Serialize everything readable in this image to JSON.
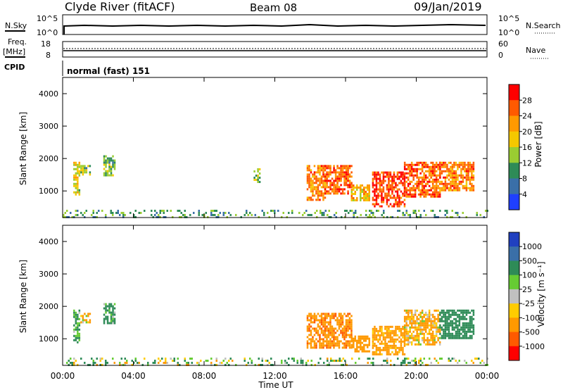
{
  "header": {
    "station": "Clyde River (fitACF)",
    "beam": "Beam 08",
    "date": "09/Jan/2019"
  },
  "top_panels": {
    "nsky_label": "N.Sky",
    "nsky_ticks": [
      "10^5",
      "10^0"
    ],
    "nsearch_label": "N.Search",
    "nsearch_ticks": [
      "10^5",
      "10^0"
    ],
    "freq_label_1": "Freq.",
    "freq_label_2": "[MHz]",
    "freq_ticks": [
      "18",
      "8"
    ],
    "nave_label": "Nave",
    "nave_ticks": [
      "60",
      "0"
    ],
    "cpid_label": "CPID",
    "cpid_value": "normal (fast) 151"
  },
  "chart_data": [
    {
      "type": "heatmap",
      "name": "power",
      "ylabel": "Slant Range [km]",
      "yticks": [
        "4000",
        "3000",
        "2000",
        "1000"
      ],
      "ylim": [
        180,
        4500
      ],
      "xlim": [
        0,
        24
      ],
      "colorbar": {
        "label": "Power [dB]",
        "ticks": [
          "28",
          "24",
          "20",
          "16",
          "12",
          "8",
          "4"
        ],
        "colors": [
          "#ff0000",
          "#ff5a00",
          "#ff9900",
          "#f5c800",
          "#9acd32",
          "#2e8b57",
          "#3a6fa8",
          "#1f3fff"
        ]
      },
      "echo_regions": [
        {
          "t0": 0.6,
          "t1": 0.9,
          "r0": 900,
          "r1": 1900,
          "value": 16
        },
        {
          "t0": 1.0,
          "t1": 1.5,
          "r0": 1500,
          "r1": 1800,
          "value": 12
        },
        {
          "t0": 2.3,
          "t1": 2.9,
          "r0": 1500,
          "r1": 2100,
          "value": 12
        },
        {
          "t0": 10.8,
          "t1": 11.1,
          "r0": 1300,
          "r1": 1700,
          "value": 12
        },
        {
          "t0": 13.8,
          "t1": 14.8,
          "r0": 700,
          "r1": 1800,
          "value": 22
        },
        {
          "t0": 14.8,
          "t1": 16.3,
          "r0": 900,
          "r1": 1800,
          "value": 24
        },
        {
          "t0": 16.3,
          "t1": 17.3,
          "r0": 700,
          "r1": 1200,
          "value": 18
        },
        {
          "t0": 17.5,
          "t1": 19.3,
          "r0": 500,
          "r1": 1600,
          "value": 26
        },
        {
          "t0": 19.3,
          "t1": 21.3,
          "r0": 800,
          "r1": 1900,
          "value": 24
        },
        {
          "t0": 21.3,
          "t1": 23.2,
          "r0": 1000,
          "r1": 1900,
          "value": 22
        },
        {
          "t0": 0.0,
          "t1": 24.0,
          "r0": 180,
          "r1": 420,
          "value": 10
        }
      ]
    },
    {
      "type": "heatmap",
      "name": "velocity",
      "xlabel": "Time UT",
      "ylabel": "Slant Range [km]",
      "xticks": [
        "00:00",
        "04:00",
        "08:00",
        "12:00",
        "16:00",
        "20:00",
        "00:00"
      ],
      "yticks": [
        "4000",
        "3000",
        "2000",
        "1000"
      ],
      "ylim": [
        180,
        4500
      ],
      "xlim": [
        0,
        24
      ],
      "colorbar": {
        "label": "Velocity [m s⁻¹]",
        "ticks": [
          "1000",
          "500",
          "100",
          "25",
          "-25",
          "-100",
          "-500",
          "-1000"
        ],
        "colors": [
          "#2040c0",
          "#3a6fa8",
          "#2e8b57",
          "#66cc33",
          "#c0c0c0",
          "#ffcc00",
          "#ff9900",
          "#ff5a00",
          "#ff0000"
        ]
      },
      "echo_regions": [
        {
          "t0": 0.6,
          "t1": 0.9,
          "r0": 900,
          "r1": 1900,
          "value": 200
        },
        {
          "t0": 1.0,
          "t1": 1.5,
          "r0": 1500,
          "r1": 1800,
          "value": -150
        },
        {
          "t0": 2.3,
          "t1": 2.9,
          "r0": 1500,
          "r1": 2100,
          "value": 200
        },
        {
          "t0": 13.8,
          "t1": 16.3,
          "r0": 700,
          "r1": 1800,
          "value": -400
        },
        {
          "t0": 16.3,
          "t1": 17.3,
          "r0": 600,
          "r1": 1100,
          "value": -300
        },
        {
          "t0": 17.5,
          "t1": 19.3,
          "r0": 500,
          "r1": 1400,
          "value": -250
        },
        {
          "t0": 19.3,
          "t1": 21.3,
          "r0": 800,
          "r1": 1900,
          "value": -150
        },
        {
          "t0": 21.3,
          "t1": 23.2,
          "r0": 1000,
          "r1": 1900,
          "value": 300
        },
        {
          "t0": 0.0,
          "t1": 24.0,
          "r0": 180,
          "r1": 420,
          "value": 50
        }
      ]
    }
  ]
}
